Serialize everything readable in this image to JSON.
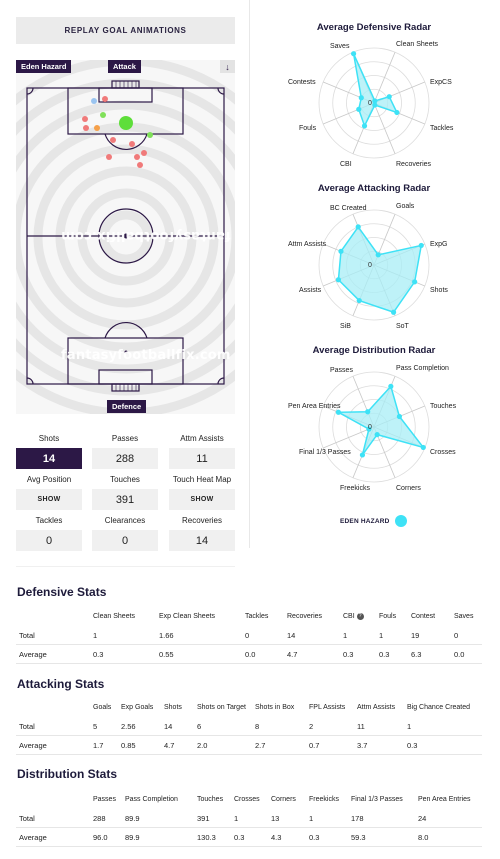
{
  "replay_label": "REPLAY GOAL ANIMATIONS",
  "player_name": "Eden Hazard",
  "attack_label": "Attack",
  "defence_label": "Defence",
  "watermark": "fantasyfootballfix.com",
  "arrow_icon": "arrow-down-icon",
  "colors": {
    "navy": "#2c1846",
    "cyan": "#3ee2f6",
    "radar_fill": "#a8eef5"
  },
  "stats": [
    {
      "label": "Shots",
      "value": "14",
      "dark": true
    },
    {
      "label": "Passes",
      "value": "288"
    },
    {
      "label": "Attm Assists",
      "value": "11"
    },
    {
      "label": "Avg Position",
      "value": "SHOW",
      "small": true
    },
    {
      "label": "Touches",
      "value": "391"
    },
    {
      "label": "Touch Heat Map",
      "value": "SHOW",
      "small": true
    },
    {
      "label": "Tackles",
      "value": "0"
    },
    {
      "label": "Clearances",
      "value": "0"
    },
    {
      "label": "Recoveries",
      "value": "14"
    }
  ],
  "radars": [
    {
      "title": "Average Defensive Radar",
      "axes": [
        "Saves",
        "Clean Sheets",
        "ExpCS",
        "Tackles",
        "Recoveries",
        "CBI",
        "Fouls",
        "Contests"
      ],
      "center_label": "0",
      "values": [
        0.04,
        0.3,
        0.45,
        0.04,
        0.45,
        0.3,
        0.25,
        0.97
      ]
    },
    {
      "title": "Average Attacking Radar",
      "axes": [
        "BC Created",
        "Goals",
        "ExpG",
        "Shots",
        "SoT",
        "SiB",
        "Assists",
        "Attm Assists"
      ],
      "center_label": "0",
      "values": [
        0.2,
        0.93,
        0.8,
        0.93,
        0.7,
        0.7,
        0.65,
        0.75
      ]
    },
    {
      "title": "Average Distribution Radar",
      "axes": [
        "Passes",
        "Pass Completion",
        "Touches",
        "Crosses",
        "Corners",
        "Freekicks",
        "Final 1/3 Passes",
        "Pen Area Entries"
      ],
      "center_label": "0",
      "values": [
        0.8,
        0.5,
        0.97,
        0.15,
        0.55,
        0.1,
        0.7,
        0.3
      ]
    }
  ],
  "legend_label": "EDEN HAZARD",
  "defensive": {
    "title": "Defensive Stats",
    "headers": [
      "",
      "Clean Sheets",
      "Exp Clean Sheets",
      "Tackles",
      "Recoveries",
      "CBI",
      "Fouls",
      "Contest",
      "Saves"
    ],
    "rows": [
      [
        "Total",
        "1",
        "1.66",
        "0",
        "14",
        "1",
        "1",
        "19",
        "0"
      ],
      [
        "Average",
        "0.3",
        "0.55",
        "0.0",
        "4.7",
        "0.3",
        "0.3",
        "6.3",
        "0.0"
      ]
    ]
  },
  "attacking": {
    "title": "Attacking Stats",
    "headers": [
      "",
      "Goals",
      "Exp Goals",
      "Shots",
      "Shots on Target",
      "Shots in Box",
      "FPL Assists",
      "Attm Assists",
      "Big Chance Created"
    ],
    "rows": [
      [
        "Total",
        "5",
        "2.56",
        "14",
        "6",
        "8",
        "2",
        "11",
        "1"
      ],
      [
        "Average",
        "1.7",
        "0.85",
        "4.7",
        "2.0",
        "2.7",
        "0.7",
        "3.7",
        "0.3"
      ]
    ]
  },
  "distribution": {
    "title": "Distribution Stats",
    "headers": [
      "",
      "Passes",
      "Pass Completion",
      "Touches",
      "Crosses",
      "Corners",
      "Freekicks",
      "Final 1/3 Passes",
      "Pen Area Entries"
    ],
    "rows": [
      [
        "Total",
        "288",
        "89.9",
        "391",
        "1",
        "13",
        "1",
        "178",
        "24"
      ],
      [
        "Average",
        "96.0",
        "89.9",
        "130.3",
        "0.3",
        "4.3",
        "0.3",
        "59.3",
        "8.0"
      ]
    ]
  }
}
